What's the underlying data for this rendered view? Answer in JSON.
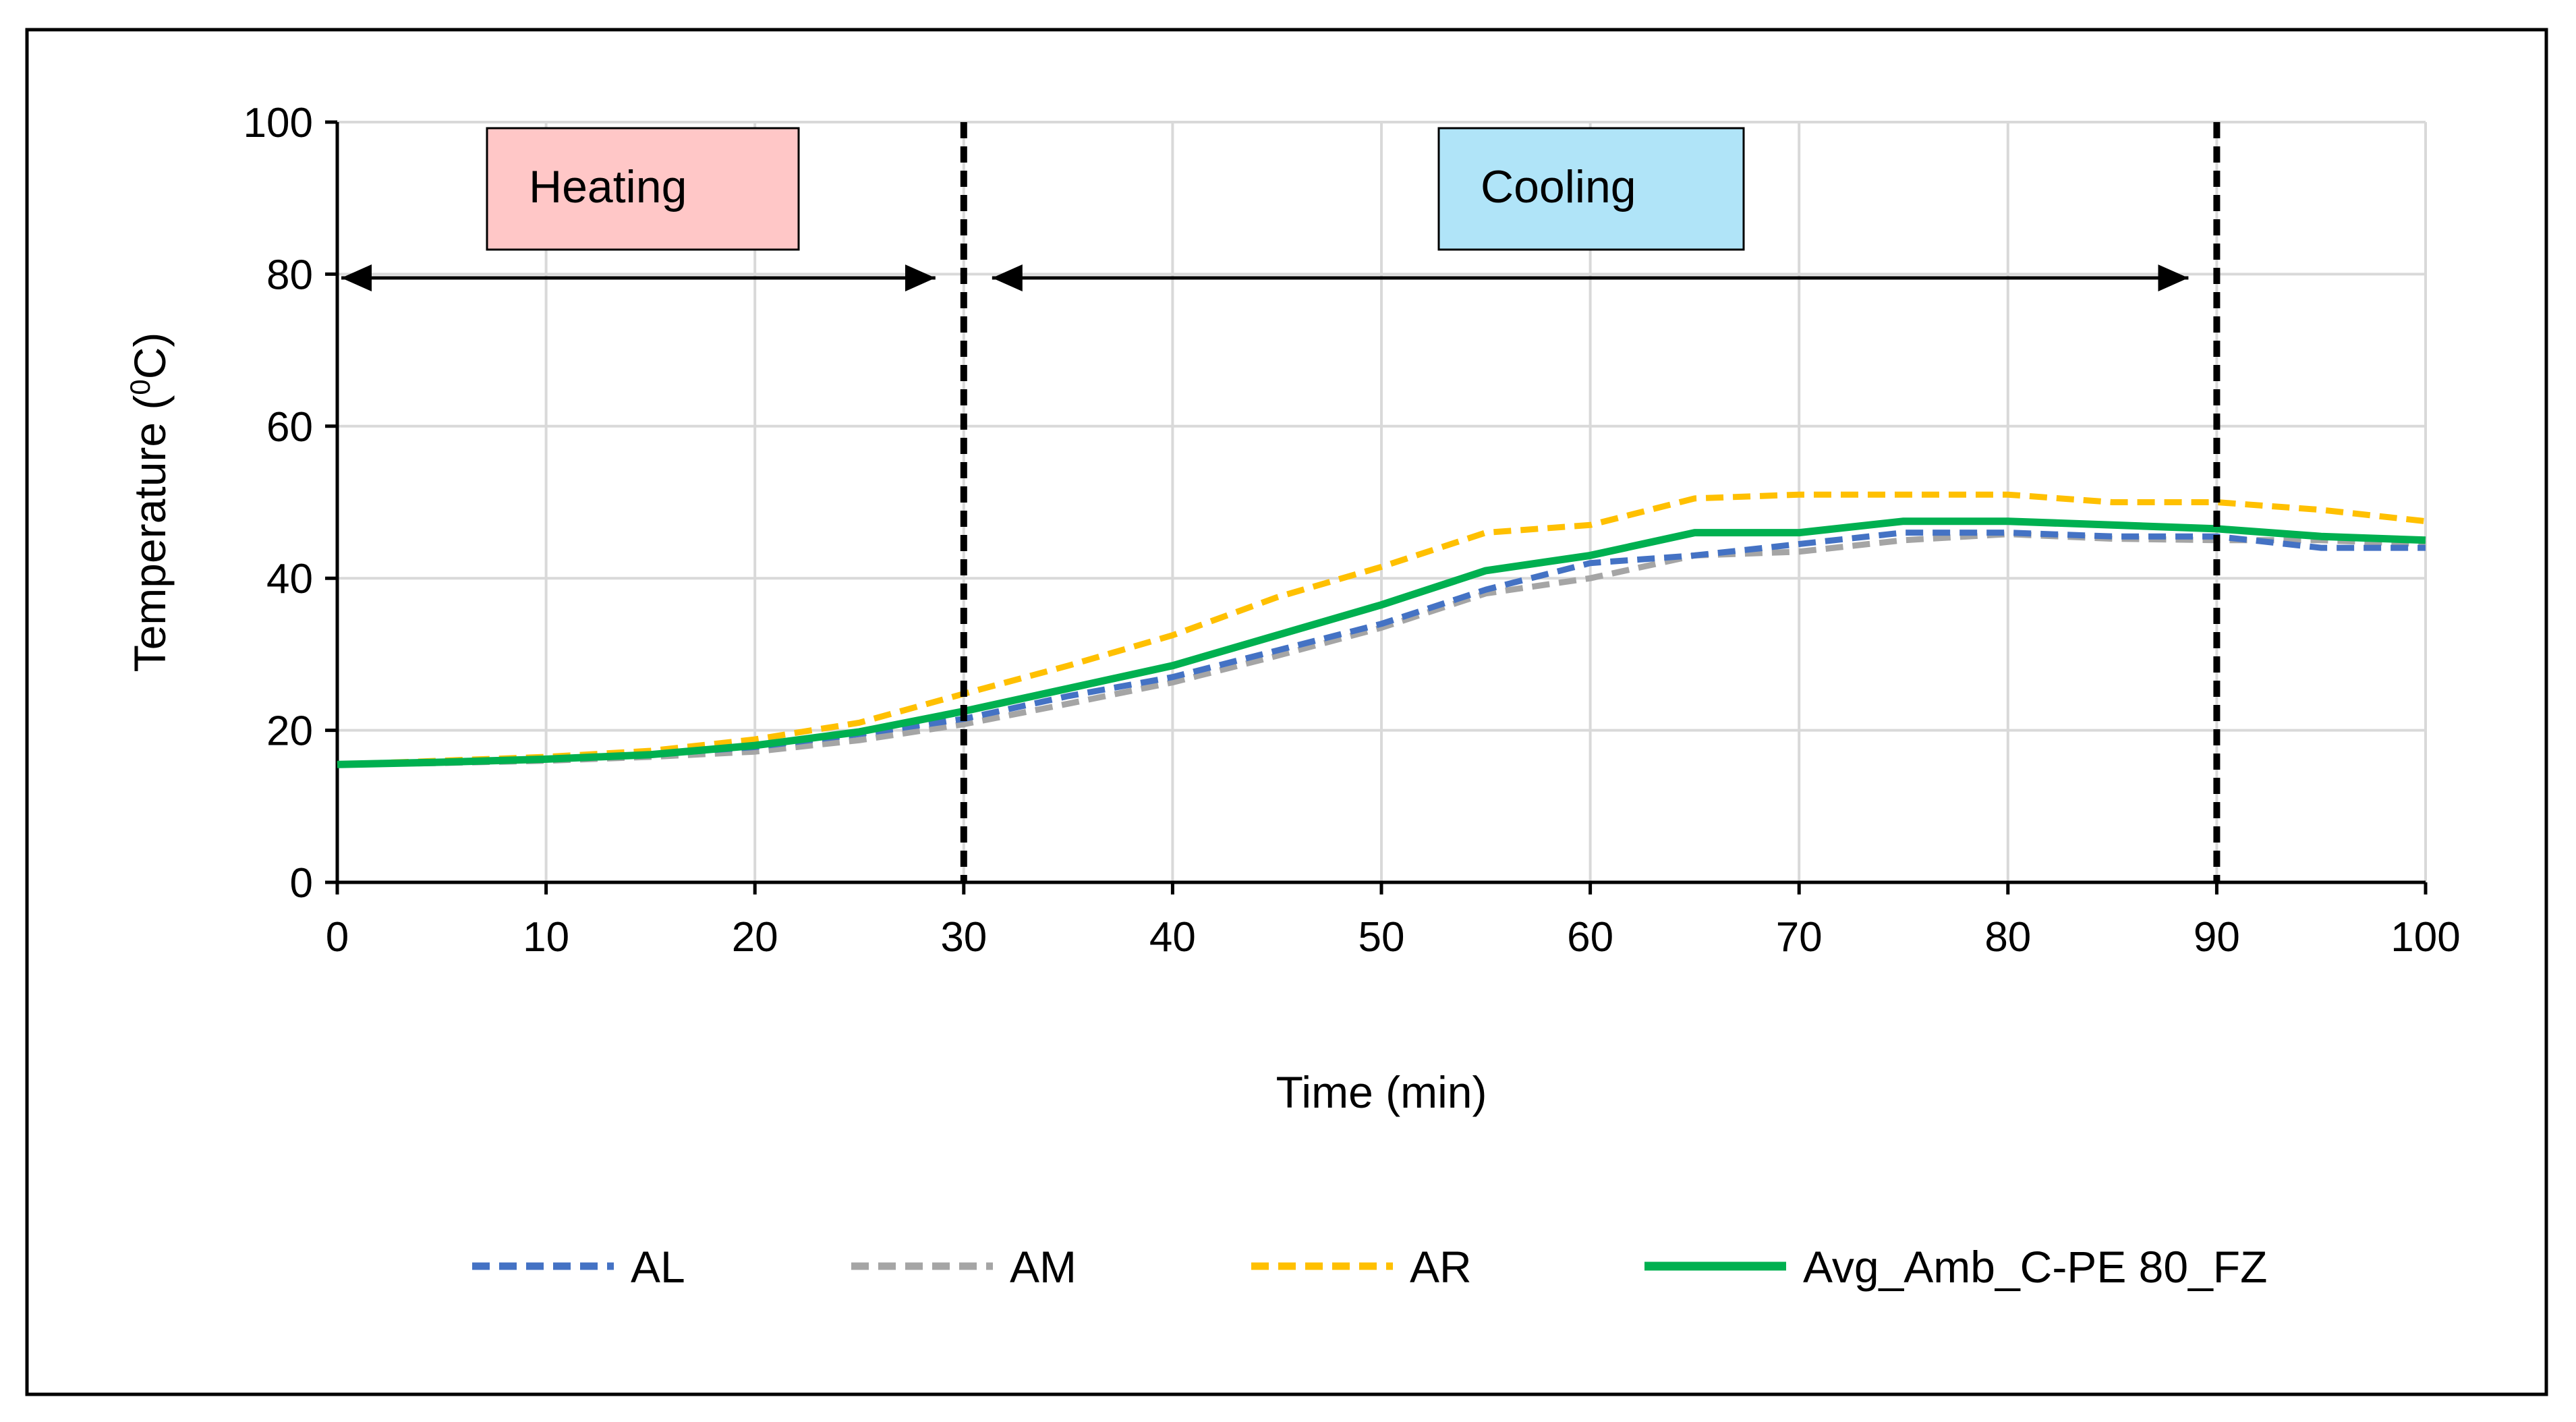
{
  "chart_data": {
    "type": "line",
    "title": "",
    "xlabel": "Time (min)",
    "ylabel": "Temperature (",
    "ylabel_sup": "0",
    "ylabel_tail": "C)",
    "xlim": [
      0,
      100
    ],
    "ylim": [
      0,
      100
    ],
    "xticks": [
      0,
      10,
      20,
      30,
      40,
      50,
      60,
      70,
      80,
      90,
      100
    ],
    "yticks": [
      0,
      20,
      40,
      60,
      80,
      100
    ],
    "grid": true,
    "legend_position": "bottom",
    "x": [
      0,
      5,
      10,
      15,
      20,
      25,
      30,
      35,
      40,
      45,
      50,
      55,
      60,
      65,
      70,
      75,
      80,
      85,
      90,
      95,
      100
    ],
    "series": [
      {
        "name": "AL",
        "color": "#4472C4",
        "dash": "dashed",
        "values": [
          15.5,
          15.8,
          16.2,
          16.8,
          17.8,
          19.5,
          21.5,
          24.5,
          27.0,
          30.5,
          34.0,
          38.5,
          42.0,
          43.0,
          44.5,
          46.0,
          46.0,
          45.5,
          45.5,
          44.0,
          44.0
        ]
      },
      {
        "name": "AM",
        "color": "#A5A5A5",
        "dash": "dashed",
        "values": [
          15.5,
          15.7,
          16.0,
          16.5,
          17.2,
          18.7,
          20.8,
          23.5,
          26.3,
          29.8,
          33.5,
          38.0,
          40.0,
          43.0,
          43.5,
          45.0,
          45.8,
          45.2,
          45.0,
          45.0,
          44.5
        ]
      },
      {
        "name": "AR",
        "color": "#FFC000",
        "dash": "dashed",
        "values": [
          15.5,
          16.0,
          16.5,
          17.3,
          18.8,
          21.0,
          24.8,
          28.5,
          32.5,
          37.5,
          41.5,
          46.0,
          47.0,
          50.5,
          51.0,
          51.0,
          51.0,
          50.0,
          50.0,
          49.0,
          47.5
        ]
      },
      {
        "name": "Avg_Amb_C-PE 80_FZ",
        "color": "#00B050",
        "dash": "solid",
        "values": [
          15.5,
          15.8,
          16.2,
          16.8,
          18.0,
          19.8,
          22.5,
          25.5,
          28.5,
          32.5,
          36.5,
          41.0,
          43.0,
          46.0,
          46.0,
          47.5,
          47.5,
          47.0,
          46.5,
          45.5,
          45.0
        ]
      }
    ],
    "vertical_markers": [
      {
        "x": 30,
        "style": "dashed",
        "color": "#000000"
      },
      {
        "x": 90,
        "style": "dashed",
        "color": "#000000"
      }
    ],
    "phases": [
      {
        "label": "Heating",
        "box_color": "#FFC7C7",
        "x_from": 0,
        "x_to": 30,
        "arrow_y": 79.5
      },
      {
        "label": "Cooling",
        "box_color": "#B0E4F8",
        "x_from": 30,
        "x_to": 90,
        "arrow_y": 79.5
      }
    ]
  }
}
